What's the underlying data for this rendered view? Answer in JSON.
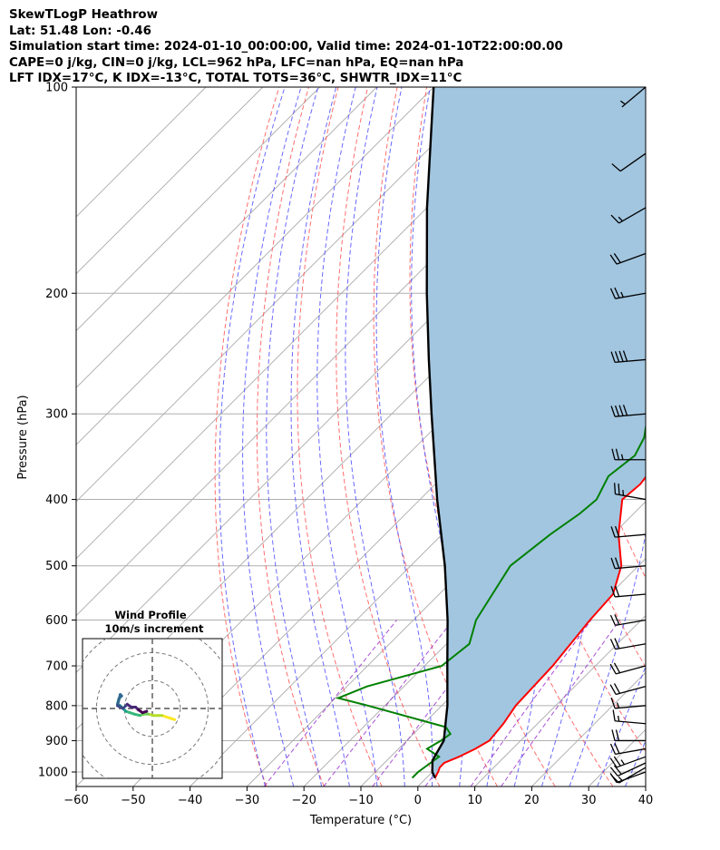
{
  "header": {
    "line1": "SkewTLogP Heathrow",
    "line2": "Lat: 51.48   Lon: -0.46",
    "line3": "Simulation start time: 2024-01-10_00:00:00, Valid time: 2024-01-10T22:00:00.00",
    "line4": "CAPE=0 j/kg, CIN=0 j/kg, LCL=962 hPa, LFC=nan hPa, EQ=nan hPa",
    "line5": "LFT IDX=17°C, K IDX=-13°C, TOTAL TOTS=36°C, SHWTR_IDX=11°C"
  },
  "colors": {
    "temperature": "#ff0000",
    "dewpoint": "#008000",
    "parcel": "#000000",
    "shading": "#a2c6e0",
    "dry_adiabat": "#ff5555",
    "moist_adiabat": "#4444ff",
    "mixing_ratio": "#9933cc",
    "isotherm": "#aaaaaa"
  },
  "chart_data": {
    "type": "line",
    "subtype": "skewt-logp",
    "xlabel": "Temperature (°C)",
    "ylabel": "Pressure (hPa)",
    "xlim": [
      -60,
      40
    ],
    "ylim": [
      1050,
      100
    ],
    "yscale": "log",
    "x_ticks": [
      -60,
      -50,
      -40,
      -30,
      -20,
      -10,
      0,
      10,
      20,
      30,
      40
    ],
    "x_tick_labels": [
      "−60",
      "−50",
      "−40",
      "−30",
      "−20",
      "−10",
      "0",
      "10",
      "20",
      "30",
      "40"
    ],
    "y_ticks": [
      100,
      200,
      300,
      400,
      500,
      600,
      700,
      800,
      900,
      1000
    ],
    "y_tick_labels": [
      "100",
      "200",
      "300",
      "400",
      "500",
      "600",
      "700",
      "800",
      "900",
      "1000"
    ],
    "grid": true,
    "series": [
      {
        "key": "temperature",
        "points": [
          [
            1020,
            1.5
          ],
          [
            1000,
            1.0
          ],
          [
            985,
            0.5
          ],
          [
            970,
            0.5
          ],
          [
            950,
            2.0
          ],
          [
            925,
            3.5
          ],
          [
            900,
            4.5
          ],
          [
            850,
            4.0
          ],
          [
            800,
            3.0
          ],
          [
            700,
            2.5
          ],
          [
            600,
            1.0
          ],
          [
            550,
            0.5
          ],
          [
            500,
            -3.0
          ],
          [
            450,
            -9.0
          ],
          [
            400,
            -14.5
          ],
          [
            380,
            -14.0
          ],
          [
            350,
            -15.0
          ],
          [
            300,
            -17.0
          ],
          [
            260,
            -18.5
          ],
          [
            230,
            -19.0
          ],
          [
            200,
            -21.0
          ],
          [
            180,
            -23.5
          ],
          [
            165,
            -24.0
          ],
          [
            150,
            -26.0
          ],
          [
            130,
            -30.0
          ],
          [
            115,
            -33.0
          ],
          [
            100,
            -36.0
          ]
        ]
      },
      {
        "key": "dewpoint",
        "points": [
          [
            1020,
            -2.5
          ],
          [
            1000,
            -2.5
          ],
          [
            950,
            -1.5
          ],
          [
            925,
            -5.0
          ],
          [
            900,
            -4.0
          ],
          [
            880,
            -3.5
          ],
          [
            860,
            -5.5
          ],
          [
            800,
            -23.0
          ],
          [
            780,
            -29.5
          ],
          [
            750,
            -26.5
          ],
          [
            700,
            -17.0
          ],
          [
            650,
            -16.0
          ],
          [
            600,
            -19.0
          ],
          [
            500,
            -22.5
          ],
          [
            450,
            -21.0
          ],
          [
            420,
            -19.5
          ],
          [
            400,
            -19.0
          ],
          [
            370,
            -21.0
          ],
          [
            345,
            -20.0
          ],
          [
            325,
            -21.5
          ],
          [
            300,
            -25.0
          ],
          [
            280,
            -28.0
          ],
          [
            250,
            -31.0
          ],
          [
            220,
            -33.0
          ],
          [
            200,
            -35.0
          ],
          [
            185,
            -37.0
          ],
          [
            170,
            -40.0
          ],
          [
            150,
            -43.0
          ],
          [
            120,
            -45.0
          ],
          [
            100,
            -45.0
          ]
        ]
      },
      {
        "key": "parcel",
        "points": [
          [
            1020,
            1.5
          ],
          [
            1000,
            0.0
          ],
          [
            962,
            -2.0
          ],
          [
            900,
            -3.5
          ],
          [
            800,
            -9.0
          ],
          [
            700,
            -16.0
          ],
          [
            600,
            -24.0
          ],
          [
            500,
            -34.0
          ],
          [
            400,
            -47.0
          ],
          [
            300,
            -63.0
          ],
          [
            250,
            -73.0
          ],
          [
            200,
            -85.0
          ],
          [
            150,
            -100.0
          ],
          [
            120,
            -111.0
          ],
          [
            100,
            -120.0
          ]
        ]
      }
    ],
    "lcl_hpa": 962,
    "wind_barbs": {
      "pressure": [
        1000,
        985,
        970,
        950,
        925,
        900,
        850,
        800,
        750,
        700,
        650,
        600,
        550,
        500,
        450,
        400,
        350,
        300,
        250,
        200,
        175,
        150,
        125,
        100
      ],
      "speed_kt": [
        10,
        15,
        20,
        25,
        20,
        20,
        15,
        15,
        20,
        20,
        20,
        20,
        20,
        20,
        20,
        25,
        25,
        40,
        40,
        25,
        20,
        15,
        10,
        5
      ],
      "direction_deg": [
        250,
        240,
        245,
        250,
        260,
        270,
        275,
        265,
        255,
        255,
        260,
        260,
        265,
        265,
        265,
        280,
        270,
        265,
        265,
        260,
        250,
        240,
        235,
        230
      ]
    },
    "hodograph": {
      "title": "Wind Profile",
      "subtitle": "10m/s increment",
      "u": [
        8.0,
        6.5,
        5.0,
        3.5,
        2.0,
        0.5,
        -1.5,
        -3.0,
        -4.5,
        -6.5,
        -8.0,
        -9.5,
        -10.5,
        -11.5,
        -12.5,
        -12.0,
        -11.0,
        -11.5,
        -12.0,
        -12.5,
        -10.5,
        -9.0,
        -7.5,
        -6.0,
        -5.0,
        -3.5,
        -2.0
      ],
      "v": [
        -4.0,
        -3.5,
        -3.0,
        -2.5,
        -2.5,
        -2.5,
        -2.0,
        -2.0,
        -2.5,
        -2.0,
        -1.5,
        -1.0,
        0.0,
        1.0,
        1.5,
        3.5,
        4.5,
        5.0,
        3.0,
        1.0,
        0.0,
        1.5,
        0.5,
        0.5,
        -0.5,
        -1.5,
        -1.0
      ],
      "ring_radii_ms": [
        10,
        20,
        30
      ],
      "range_ms": 50
    }
  }
}
